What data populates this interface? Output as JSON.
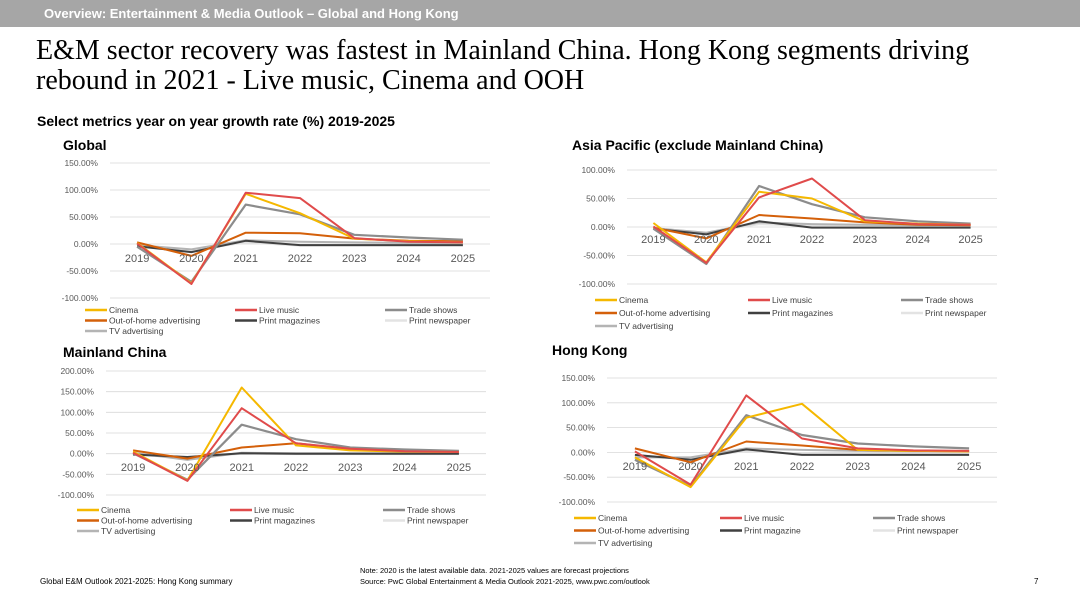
{
  "header": {
    "title": "Overview: Entertainment & Media Outlook – Global and Hong Kong"
  },
  "headline": "E&M sector recovery was fastest in Mainland China. Hong Kong segments driving rebound in 2021 - Live music, Cinema and OOH",
  "subtitle": "Select metrics year on year growth rate (%) 2019-2025",
  "footer": {
    "left": "Global E&M Outlook 2021-2025: Hong Kong summary",
    "note": "Note: 2020 is the latest available data. 2021-2025 values are forecast projections",
    "source": "Source: PwC Global Entertainment & Media Outlook 2021-2025, www.pwc.com/outlook",
    "page": "7"
  },
  "colors": {
    "header_bar": "#a6a6a6",
    "cinema": "#f5b800",
    "live_music": "#e04b4b",
    "trade_shows": "#8c8c8c",
    "out_of_home": "#d4600a",
    "print_magazines": "#404040",
    "print_newspaper": "#e3e3e3",
    "tv_advertising": "#b4b4b4"
  },
  "chart_data": [
    {
      "type": "line",
      "title": "Global",
      "x": [
        "2019",
        "2020",
        "2021",
        "2022",
        "2023",
        "2024",
        "2025"
      ],
      "ylim": [
        -100,
        150
      ],
      "yticks": [
        "150.00%",
        "100.00%",
        "50.00%",
        "0.00%",
        "-50.00%",
        "-100.00%"
      ],
      "legend_position": "bottom",
      "grid": true,
      "series": [
        {
          "name": "Cinema",
          "values": [
            2,
            -73,
            93,
            57,
            10,
            5,
            3
          ]
        },
        {
          "name": "Live music",
          "values": [
            1,
            -74,
            95,
            85,
            11,
            4,
            3
          ]
        },
        {
          "name": "Trade shows",
          "values": [
            -5,
            -70,
            73,
            55,
            17,
            12,
            8
          ]
        },
        {
          "name": "Out-of-home advertising",
          "values": [
            3,
            -22,
            21,
            20,
            10,
            6,
            5
          ]
        },
        {
          "name": "Print magazines",
          "values": [
            -4,
            -15,
            6,
            -2,
            -2,
            -2,
            -2
          ]
        },
        {
          "name": "Print newspaper",
          "values": [
            -3,
            -12,
            3,
            -3,
            -3,
            -3,
            -3
          ]
        },
        {
          "name": "TV advertising",
          "values": [
            -2,
            -10,
            7,
            4,
            3,
            2,
            2
          ]
        }
      ]
    },
    {
      "type": "line",
      "title": "Asia Pacific (exclude Mainland China)",
      "x": [
        "2019",
        "2020",
        "2021",
        "2022",
        "2023",
        "2024",
        "2025"
      ],
      "ylim": [
        -100,
        100
      ],
      "yticks": [
        "100.00%",
        "50.00%",
        "0.00%",
        "-50.00%",
        "-100.00%"
      ],
      "legend_position": "bottom",
      "grid": true,
      "series": [
        {
          "name": "Cinema",
          "values": [
            7,
            -62,
            62,
            50,
            10,
            6,
            4
          ]
        },
        {
          "name": "Live music",
          "values": [
            1,
            -63,
            52,
            85,
            12,
            5,
            4
          ]
        },
        {
          "name": "Trade shows",
          "values": [
            -3,
            -65,
            72,
            40,
            17,
            10,
            6
          ]
        },
        {
          "name": "Out-of-home advertising",
          "values": [
            -1,
            -20,
            21,
            15,
            8,
            4,
            3
          ]
        },
        {
          "name": "Print magazines",
          "values": [
            -3,
            -13,
            10,
            -1,
            -1,
            -1,
            -1
          ]
        },
        {
          "name": "Print newspaper",
          "values": [
            -2,
            -10,
            5,
            2,
            1,
            1,
            1
          ]
        },
        {
          "name": "TV advertising",
          "values": [
            -2,
            -10,
            8,
            5,
            4,
            3,
            3
          ]
        }
      ]
    },
    {
      "type": "line",
      "title": "Mainland China",
      "x": [
        "2019",
        "2020",
        "2021",
        "2022",
        "2023",
        "2024",
        "2025"
      ],
      "ylim": [
        -100,
        200
      ],
      "yticks": [
        "200.00%",
        "150.00%",
        "100.00%",
        "50.00%",
        "0.00%",
        "-50.00%",
        "-100.00%"
      ],
      "legend_position": "bottom",
      "grid": true,
      "series": [
        {
          "name": "Cinema",
          "values": [
            5,
            -65,
            160,
            20,
            8,
            5,
            4
          ]
        },
        {
          "name": "Live music",
          "values": [
            2,
            -66,
            110,
            25,
            12,
            6,
            4
          ]
        },
        {
          "name": "Trade shows",
          "values": [
            1,
            -63,
            70,
            35,
            15,
            10,
            7
          ]
        },
        {
          "name": "Out-of-home advertising",
          "values": [
            8,
            -12,
            15,
            25,
            10,
            6,
            5
          ]
        },
        {
          "name": "Print magazines",
          "values": [
            -2,
            -8,
            1,
            0,
            0,
            0,
            0
          ]
        },
        {
          "name": "Print newspaper",
          "values": [
            -3,
            -10,
            0,
            -1,
            -1,
            -1,
            -1
          ]
        },
        {
          "name": "TV advertising",
          "values": [
            2,
            -15,
            2,
            1,
            1,
            1,
            1
          ]
        }
      ]
    },
    {
      "type": "line",
      "title": "Hong Kong",
      "x": [
        "2019",
        "2020",
        "2021",
        "2022",
        "2023",
        "2024",
        "2025"
      ],
      "ylim": [
        -100,
        150
      ],
      "yticks": [
        "150.00%",
        "100.00%",
        "50.00%",
        "0.00%",
        "-50.00%",
        "-100.00%"
      ],
      "legend_position": "bottom",
      "grid": true,
      "series": [
        {
          "name": "Cinema",
          "values": [
            -10,
            -70,
            70,
            98,
            5,
            3,
            2
          ]
        },
        {
          "name": "Live music",
          "values": [
            2,
            -65,
            115,
            28,
            8,
            4,
            3
          ]
        },
        {
          "name": "Trade shows",
          "values": [
            -15,
            -68,
            75,
            35,
            18,
            12,
            8
          ]
        },
        {
          "name": "Out-of-home advertising",
          "values": [
            8,
            -20,
            22,
            14,
            5,
            3,
            2
          ]
        },
        {
          "name": "Print magazine",
          "values": [
            -5,
            -15,
            6,
            -5,
            -5,
            -5,
            -5
          ]
        },
        {
          "name": "Print newspaper",
          "values": [
            -8,
            -12,
            3,
            -3,
            -2,
            -2,
            -2
          ]
        },
        {
          "name": "TV advertising",
          "values": [
            -10,
            -10,
            8,
            5,
            3,
            2,
            2
          ]
        }
      ]
    }
  ]
}
